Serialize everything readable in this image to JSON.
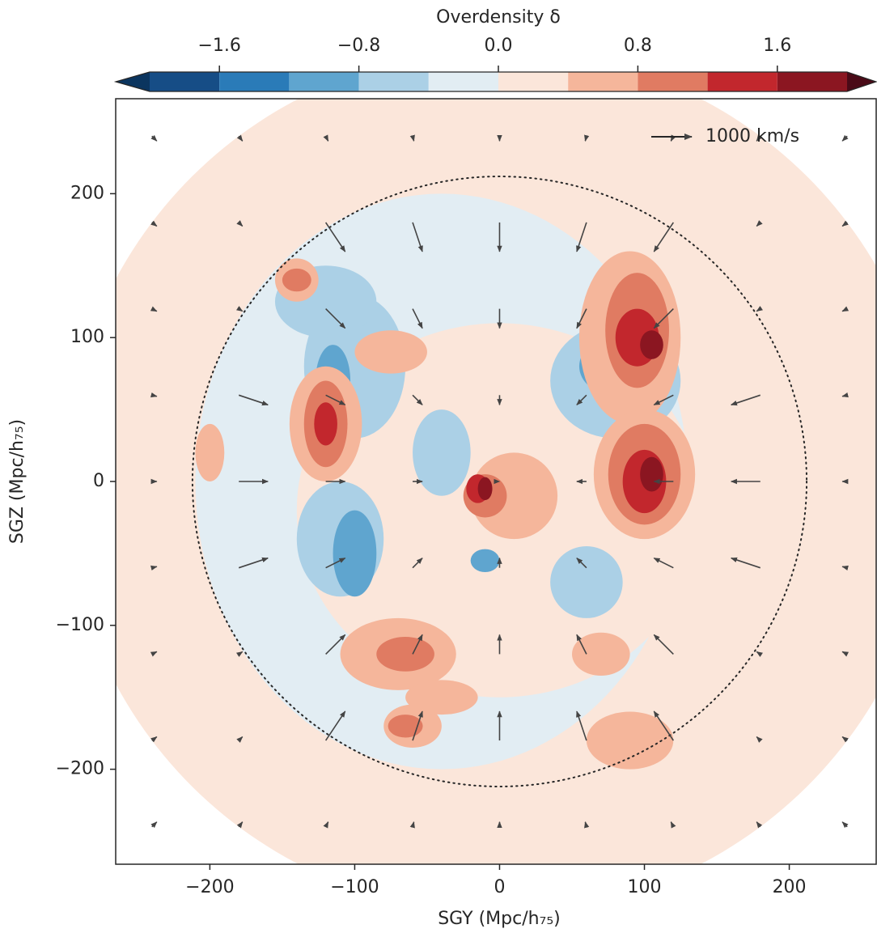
{
  "chart_data": {
    "type": "contour-quiver",
    "colorbar_label": "Overdensity δ",
    "x_label": "SGY (Mpc/h₇₅)",
    "y_label": "SGZ (Mpc/h₇₅)",
    "xlim": [
      -265,
      260
    ],
    "ylim": [
      -266,
      266
    ],
    "xticks": [
      {
        "value": -200,
        "label": "−200"
      },
      {
        "value": -100,
        "label": "−100"
      },
      0,
      100,
      200
    ],
    "yticks": [
      {
        "value": -200,
        "label": "−200"
      },
      {
        "value": -100,
        "label": "−100"
      },
      0,
      100,
      200
    ],
    "levels": [
      -2.0,
      -1.6,
      -1.2,
      -0.8,
      -0.4,
      0.0,
      0.4,
      0.8,
      1.2,
      1.6,
      2.0
    ],
    "colors": [
      "#0b355f",
      "#164d86",
      "#2a7bb8",
      "#5fa5cf",
      "#abd0e6",
      "#e2edf3",
      "#fbe6da",
      "#f5b69b",
      "#e07b62",
      "#c2272d",
      "#8b1621",
      "#4a0a17"
    ],
    "colorbar_ticks": [
      {
        "value": -1.6,
        "label": "−1.6"
      },
      {
        "value": -0.8,
        "label": "−0.8"
      },
      {
        "value": 0.0,
        "label": "0.0"
      },
      {
        "value": 0.8,
        "label": "0.8"
      },
      {
        "value": 1.6,
        "label": "1.6"
      }
    ],
    "circle_radius": 212,
    "regions": [
      {
        "x": 0,
        "y": 0,
        "rx": 300,
        "ry": 300,
        "delta": 0.2
      },
      {
        "x": -40,
        "y": 0,
        "rx": 170,
        "ry": 200,
        "delta": -0.2
      },
      {
        "x": 0,
        "y": -20,
        "rx": 140,
        "ry": 130,
        "delta": 0.2
      },
      {
        "x": -100,
        "y": 80,
        "rx": 35,
        "ry": 50,
        "delta": -0.6
      },
      {
        "x": -110,
        "y": -40,
        "rx": 30,
        "ry": 40,
        "delta": -0.6
      },
      {
        "x": -120,
        "y": 125,
        "rx": 35,
        "ry": 25,
        "delta": -0.6
      },
      {
        "x": 80,
        "y": 70,
        "rx": 45,
        "ry": 40,
        "delta": -0.6
      },
      {
        "x": 60,
        "y": -70,
        "rx": 25,
        "ry": 25,
        "delta": -0.6
      },
      {
        "x": -40,
        "y": 20,
        "rx": 20,
        "ry": 30,
        "delta": -0.6
      },
      {
        "x": -100,
        "y": -50,
        "rx": 15,
        "ry": 30,
        "delta": -1.0
      },
      {
        "x": -115,
        "y": 70,
        "rx": 12,
        "ry": 25,
        "delta": -1.0
      },
      {
        "x": 80,
        "y": 80,
        "rx": 25,
        "ry": 20,
        "delta": -1.0
      },
      {
        "x": -10,
        "y": -55,
        "rx": 10,
        "ry": 8,
        "delta": -1.0
      },
      {
        "x": 85,
        "y": 75,
        "rx": 12,
        "ry": 10,
        "delta": -1.4
      },
      {
        "x": 90,
        "y": 100,
        "rx": 35,
        "ry": 60,
        "delta": 0.6
      },
      {
        "x": 100,
        "y": 5,
        "rx": 35,
        "ry": 45,
        "delta": 0.6
      },
      {
        "x": -120,
        "y": 40,
        "rx": 25,
        "ry": 40,
        "delta": 0.6
      },
      {
        "x": -70,
        "y": -120,
        "rx": 40,
        "ry": 25,
        "delta": 0.6
      },
      {
        "x": -60,
        "y": -170,
        "rx": 20,
        "ry": 15,
        "delta": 0.6
      },
      {
        "x": -40,
        "y": -150,
        "rx": 25,
        "ry": 12,
        "delta": 0.6
      },
      {
        "x": 90,
        "y": -180,
        "rx": 30,
        "ry": 20,
        "delta": 0.6
      },
      {
        "x": -140,
        "y": 140,
        "rx": 15,
        "ry": 15,
        "delta": 0.6
      },
      {
        "x": 10,
        "y": -10,
        "rx": 30,
        "ry": 30,
        "delta": 0.6
      },
      {
        "x": -75,
        "y": 90,
        "rx": 25,
        "ry": 15,
        "delta": 0.6
      },
      {
        "x": -200,
        "y": 20,
        "rx": 10,
        "ry": 20,
        "delta": 0.6
      },
      {
        "x": 70,
        "y": -120,
        "rx": 20,
        "ry": 15,
        "delta": 0.6
      },
      {
        "x": 95,
        "y": 105,
        "rx": 22,
        "ry": 40,
        "delta": 1.0
      },
      {
        "x": 100,
        "y": 5,
        "rx": 25,
        "ry": 35,
        "delta": 1.0
      },
      {
        "x": -120,
        "y": 40,
        "rx": 15,
        "ry": 30,
        "delta": 1.0
      },
      {
        "x": -65,
        "y": -120,
        "rx": 20,
        "ry": 12,
        "delta": 1.0
      },
      {
        "x": -65,
        "y": -170,
        "rx": 12,
        "ry": 8,
        "delta": 1.0
      },
      {
        "x": -140,
        "y": 140,
        "rx": 10,
        "ry": 8,
        "delta": 1.0
      },
      {
        "x": -10,
        "y": -10,
        "rx": 15,
        "ry": 15,
        "delta": 1.0
      },
      {
        "x": 95,
        "y": 100,
        "rx": 15,
        "ry": 20,
        "delta": 1.4
      },
      {
        "x": 100,
        "y": 0,
        "rx": 15,
        "ry": 22,
        "delta": 1.4
      },
      {
        "x": -120,
        "y": 40,
        "rx": 8,
        "ry": 15,
        "delta": 1.4
      },
      {
        "x": -15,
        "y": -5,
        "rx": 8,
        "ry": 10,
        "delta": 1.4
      },
      {
        "x": 105,
        "y": 95,
        "rx": 8,
        "ry": 10,
        "delta": 1.8
      },
      {
        "x": 105,
        "y": 5,
        "rx": 8,
        "ry": 12,
        "delta": 1.8
      },
      {
        "x": -10,
        "y": -5,
        "rx": 5,
        "ry": 8,
        "delta": 1.8
      }
    ],
    "quiver": {
      "x": [
        -240,
        -180,
        -120,
        -60,
        0,
        60,
        120,
        180,
        240
      ],
      "y": [
        240,
        180,
        120,
        60,
        0,
        -60,
        -120,
        -180,
        -240
      ],
      "u": [
        [
          120,
          90,
          60,
          30,
          0,
          -30,
          -60,
          -90,
          -120
        ],
        [
          120,
          90,
          480,
          240,
          0,
          -240,
          -480,
          -90,
          -120
        ],
        [
          120,
          90,
          480,
          240,
          0,
          -240,
          -480,
          -90,
          -120
        ],
        [
          120,
          720,
          480,
          240,
          0,
          -240,
          -480,
          -720,
          -120
        ],
        [
          120,
          720,
          480,
          240,
          0,
          -240,
          -480,
          -720,
          -120
        ],
        [
          120,
          720,
          480,
          240,
          0,
          -240,
          -480,
          -720,
          -120
        ],
        [
          120,
          90,
          480,
          240,
          0,
          -240,
          -480,
          -90,
          -120
        ],
        [
          120,
          90,
          480,
          240,
          0,
          -240,
          -480,
          -90,
          -120
        ],
        [
          120,
          90,
          60,
          30,
          0,
          -30,
          -60,
          -90,
          -120
        ]
      ],
      "v": [
        [
          -120,
          -120,
          -120,
          -120,
          -120,
          -120,
          -120,
          -120,
          -120
        ],
        [
          -90,
          -90,
          -720,
          -720,
          -720,
          -720,
          -720,
          -90,
          -90
        ],
        [
          -60,
          -60,
          -480,
          -480,
          -480,
          -480,
          -480,
          -60,
          -60
        ],
        [
          -30,
          -240,
          -240,
          -240,
          -240,
          -240,
          -240,
          -240,
          -30
        ],
        [
          0,
          0,
          0,
          0,
          0,
          0,
          0,
          0,
          0
        ],
        [
          30,
          240,
          240,
          240,
          240,
          240,
          240,
          240,
          30
        ],
        [
          60,
          60,
          480,
          480,
          480,
          480,
          480,
          60,
          60
        ],
        [
          90,
          90,
          720,
          720,
          720,
          720,
          720,
          90,
          90
        ],
        [
          120,
          120,
          120,
          120,
          120,
          120,
          120,
          120,
          120
        ]
      ],
      "key": {
        "value": 1000,
        "label": "1000 km/s"
      }
    }
  }
}
